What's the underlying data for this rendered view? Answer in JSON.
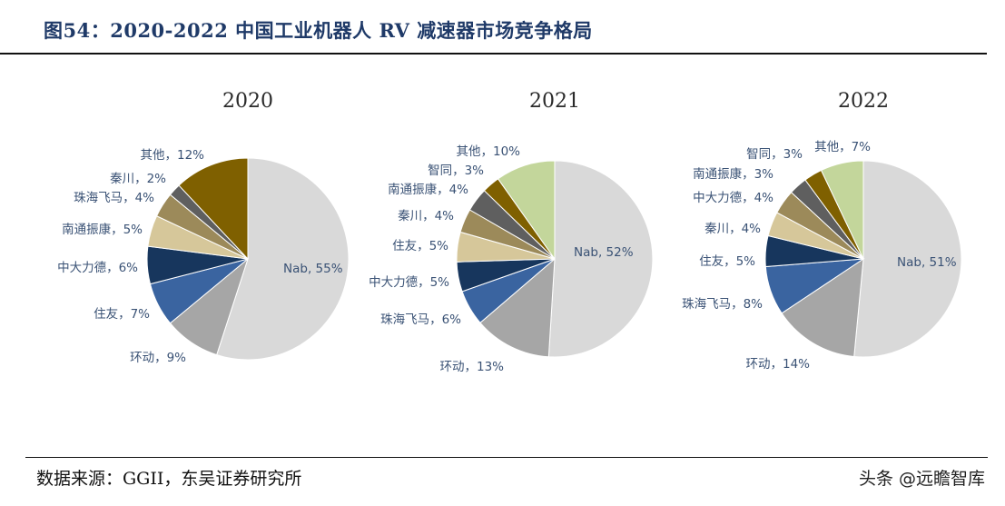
{
  "header": {
    "title": "图54：2020-2022 中国工业机器人 RV 减速器市场竞争格局"
  },
  "footer": {
    "source": "数据来源：GGII，东吴证券研究所",
    "watermark": "头条 @远瞻智库"
  },
  "colors": {
    "Nab": "#d9d9d9",
    "环动": "#a6a6a6",
    "住友": "#3a64a0",
    "中大力德": "#17365d",
    "南通振康": "#d6c79a",
    "珠海飞马": "#9c8a5a",
    "秦川": "#5f5f5f",
    "其他": "#7f6000",
    "智同": "#8b6508",
    "其他2021": "#c3d69b"
  },
  "chart_data": [
    {
      "type": "pie",
      "title": "2020",
      "slices": [
        {
          "name": "Nab",
          "value": 55,
          "label": "Nab, 55%",
          "color": "#d9d9d9"
        },
        {
          "name": "环动",
          "value": 9,
          "label": "环动，9%",
          "color": "#a6a6a6"
        },
        {
          "name": "住友",
          "value": 7,
          "label": "住友，7%",
          "color": "#3a64a0"
        },
        {
          "name": "中大力德",
          "value": 6,
          "label": "中大力德，6%",
          "color": "#17365d"
        },
        {
          "name": "南通振康",
          "value": 5,
          "label": "南通振康，5%",
          "color": "#d6c79a"
        },
        {
          "name": "珠海飞马",
          "value": 4,
          "label": "珠海飞马，4%",
          "color": "#9c8a5a"
        },
        {
          "name": "秦川",
          "value": 2,
          "label": "秦川，2%",
          "color": "#5f5f5f"
        },
        {
          "name": "其他",
          "value": 12,
          "label": "其他，12%",
          "color": "#7f6000"
        }
      ]
    },
    {
      "type": "pie",
      "title": "2021",
      "slices": [
        {
          "name": "Nab",
          "value": 52,
          "label": "Nab, 52%",
          "color": "#d9d9d9"
        },
        {
          "name": "环动",
          "value": 13,
          "label": "环动，13%",
          "color": "#a6a6a6"
        },
        {
          "name": "珠海飞马",
          "value": 6,
          "label": "珠海飞马，6%",
          "color": "#3a64a0"
        },
        {
          "name": "中大力德",
          "value": 5,
          "label": "中大力德，5%",
          "color": "#17365d"
        },
        {
          "name": "住友",
          "value": 5,
          "label": "住友，5%",
          "color": "#d6c79a"
        },
        {
          "name": "秦川",
          "value": 4,
          "label": "秦川，4%",
          "color": "#9c8a5a"
        },
        {
          "name": "南通振康",
          "value": 4,
          "label": "南通振康，4%",
          "color": "#5f5f5f"
        },
        {
          "name": "智同",
          "value": 3,
          "label": "智同，3%",
          "color": "#7f6000"
        },
        {
          "name": "其他",
          "value": 10,
          "label": "其他，10%",
          "color": "#c3d69b"
        }
      ]
    },
    {
      "type": "pie",
      "title": "2022",
      "slices": [
        {
          "name": "Nab",
          "value": 51,
          "label": "Nab, 51%",
          "color": "#d9d9d9"
        },
        {
          "name": "环动",
          "value": 14,
          "label": "环动，14%",
          "color": "#a6a6a6"
        },
        {
          "name": "珠海飞马",
          "value": 8,
          "label": "珠海飞马，8%",
          "color": "#3a64a0"
        },
        {
          "name": "住友",
          "value": 5,
          "label": "住友，5%",
          "color": "#17365d"
        },
        {
          "name": "秦川",
          "value": 4,
          "label": "秦川，4%",
          "color": "#d6c79a"
        },
        {
          "name": "中大力德",
          "value": 4,
          "label": "中大力德，4%",
          "color": "#9c8a5a"
        },
        {
          "name": "南通振康",
          "value": 3,
          "label": "南通振康，3%",
          "color": "#5f5f5f"
        },
        {
          "name": "智同",
          "value": 3,
          "label": "智同，3%",
          "color": "#7f6000"
        },
        {
          "name": "其他",
          "value": 7,
          "label": "其他，7%",
          "color": "#c3d69b"
        }
      ]
    }
  ]
}
